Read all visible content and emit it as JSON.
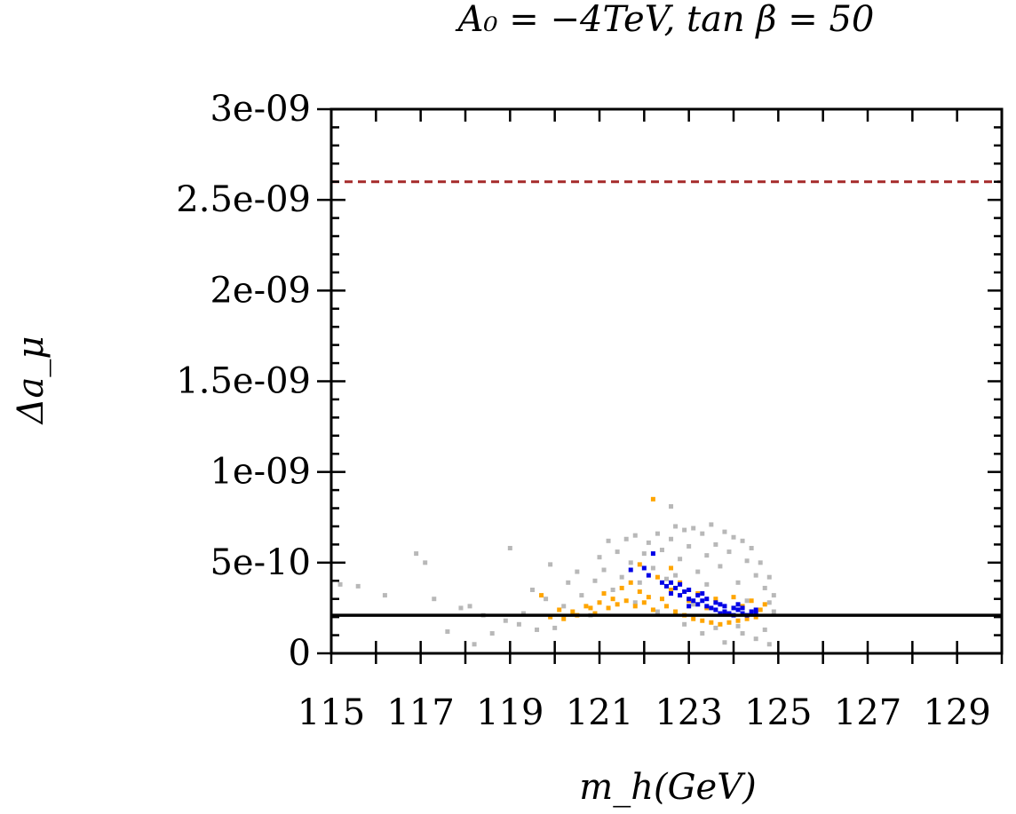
{
  "chart_data": {
    "type": "scatter",
    "title": "A₀ = −4TeV, tan β = 50",
    "xlabel": "m_h(GeV)",
    "ylabel": "Δa_μ",
    "xlim": [
      115,
      130
    ],
    "ylim": [
      0,
      3e-09
    ],
    "x_ticks": [
      115,
      117,
      119,
      121,
      123,
      125,
      127,
      129
    ],
    "x_tick_labels": [
      "115",
      "117",
      "119",
      "121",
      "123",
      "125",
      "127",
      "129"
    ],
    "y_ticks": [
      0,
      5e-10,
      1e-09,
      1.5e-09,
      2e-09,
      2.5e-09,
      3e-09
    ],
    "y_tick_labels": [
      "0",
      "5e-10",
      "1e-09",
      "1.5e-09",
      "2e-09",
      "2.5e-09",
      "3e-09"
    ],
    "grid": false,
    "reference_lines": [
      {
        "y": 2.6e-09,
        "style": "dashed",
        "color": "#a52a2a"
      },
      {
        "y": 2.1e-10,
        "style": "solid",
        "color": "#000000"
      }
    ],
    "colors": {
      "gray": "#b8b8b8",
      "orange": "#ffa500",
      "blue": "#0000e6"
    },
    "series": [
      {
        "color": "#b8b8b8",
        "points": [
          [
            115.2,
            3.8e-10
          ],
          [
            115.6,
            3.7e-10
          ],
          [
            116.2,
            3.2e-10
          ],
          [
            116.9,
            5.5e-10
          ],
          [
            117.1,
            5e-10
          ],
          [
            117.3,
            3e-10
          ],
          [
            117.6,
            1.2e-10
          ],
          [
            117.9,
            2.5e-10
          ],
          [
            118.1,
            2.6e-10
          ],
          [
            118.2,
            5e-11
          ],
          [
            118.4,
            2.1e-10
          ],
          [
            118.6,
            1.1e-10
          ],
          [
            118.9,
            1.8e-10
          ],
          [
            119.0,
            5.8e-10
          ],
          [
            119.2,
            1.6e-10
          ],
          [
            119.3,
            2.2e-10
          ],
          [
            119.5,
            3.5e-10
          ],
          [
            119.6,
            1.3e-10
          ],
          [
            119.8,
            3e-10
          ],
          [
            119.9,
            4.9e-10
          ],
          [
            120.0,
            1.4e-10
          ],
          [
            120.2,
            2.6e-10
          ],
          [
            120.3,
            3.9e-10
          ],
          [
            120.5,
            4.5e-10
          ],
          [
            120.6,
            3.2e-10
          ],
          [
            120.8,
            2.1e-10
          ],
          [
            120.9,
            4e-10
          ],
          [
            121.0,
            5.3e-10
          ],
          [
            121.1,
            4.6e-10
          ],
          [
            121.2,
            6.2e-10
          ],
          [
            121.3,
            3.5e-10
          ],
          [
            121.4,
            5.6e-10
          ],
          [
            121.5,
            4.2e-10
          ],
          [
            121.6,
            6.3e-10
          ],
          [
            121.7,
            5e-10
          ],
          [
            121.8,
            6.5e-10
          ],
          [
            121.9,
            3.9e-10
          ],
          [
            122.0,
            5.5e-10
          ],
          [
            122.1,
            6.1e-10
          ],
          [
            122.2,
            4.7e-10
          ],
          [
            122.3,
            6.6e-10
          ],
          [
            122.4,
            5.7e-10
          ],
          [
            122.5,
            4.1e-10
          ],
          [
            122.6,
            6.3e-10
          ],
          [
            122.7,
            7e-10
          ],
          [
            122.8,
            5.2e-10
          ],
          [
            122.9,
            6.8e-10
          ],
          [
            123.0,
            5.9e-10
          ],
          [
            123.1,
            6.9e-10
          ],
          [
            123.2,
            4.5e-10
          ],
          [
            123.3,
            6.6e-10
          ],
          [
            123.4,
            5.4e-10
          ],
          [
            123.5,
            7.1e-10
          ],
          [
            123.6,
            6e-10
          ],
          [
            123.7,
            4.8e-10
          ],
          [
            123.8,
            6.7e-10
          ],
          [
            123.9,
            5.6e-10
          ],
          [
            124.0,
            6.4e-10
          ],
          [
            124.1,
            3.9e-10
          ],
          [
            124.2,
            6.2e-10
          ],
          [
            124.3,
            5.1e-10
          ],
          [
            124.4,
            5.8e-10
          ],
          [
            124.5,
            4.3e-10
          ],
          [
            124.6,
            5e-10
          ],
          [
            124.7,
            3.6e-10
          ],
          [
            124.8,
            4.2e-10
          ],
          [
            124.8,
            2.8e-10
          ],
          [
            124.9,
            3.2e-10
          ],
          [
            124.9,
            2.3e-10
          ],
          [
            122.6,
            8.1e-10
          ],
          [
            123.3,
            1.1e-10
          ],
          [
            123.8,
            6e-11
          ],
          [
            124.2,
            1.1e-10
          ],
          [
            124.5,
            8e-11
          ],
          [
            124.8,
            5e-11
          ],
          [
            122.9,
            1.6e-10
          ],
          [
            123.6,
            1.4e-10
          ],
          [
            124.1,
            1.5e-10
          ],
          [
            124.7,
            1.3e-10
          ],
          [
            122.3,
            2.3e-10
          ],
          [
            121.8,
            2.8e-10
          ],
          [
            123.4,
            3.8e-10
          ],
          [
            122.7,
            4.3e-10
          ],
          [
            123.1,
            2.7e-10
          ],
          [
            124.3,
            2.9e-10
          ]
        ]
      },
      {
        "color": "#ffa500",
        "points": [
          [
            119.7,
            3.2e-10
          ],
          [
            119.9,
            2e-10
          ],
          [
            120.1,
            2.4e-10
          ],
          [
            120.2,
            1.9e-10
          ],
          [
            120.4,
            2.3e-10
          ],
          [
            120.5,
            2.1e-10
          ],
          [
            120.7,
            2.6e-10
          ],
          [
            120.8,
            2.5e-10
          ],
          [
            120.9,
            2.2e-10
          ],
          [
            121.0,
            2.8e-10
          ],
          [
            121.1,
            3.3e-10
          ],
          [
            121.2,
            2.5e-10
          ],
          [
            121.3,
            3e-10
          ],
          [
            121.4,
            2.7e-10
          ],
          [
            121.5,
            3.6e-10
          ],
          [
            121.6,
            2.9e-10
          ],
          [
            121.7,
            3.9e-10
          ],
          [
            121.8,
            2.6e-10
          ],
          [
            121.9,
            3.4e-10
          ],
          [
            122.0,
            2.8e-10
          ],
          [
            122.1,
            3.1e-10
          ],
          [
            122.2,
            2.4e-10
          ],
          [
            122.3,
            4.2e-10
          ],
          [
            122.4,
            3e-10
          ],
          [
            122.5,
            2.6e-10
          ],
          [
            122.6,
            3.5e-10
          ],
          [
            122.7,
            2.3e-10
          ],
          [
            122.8,
            3.9e-10
          ],
          [
            122.9,
            2.1e-10
          ],
          [
            123.0,
            2.9e-10
          ],
          [
            123.1,
            1.9e-10
          ],
          [
            123.2,
            3.3e-10
          ],
          [
            123.3,
            1.8e-10
          ],
          [
            123.4,
            2.5e-10
          ],
          [
            123.5,
            1.7e-10
          ],
          [
            123.6,
            3e-10
          ],
          [
            123.7,
            1.6e-10
          ],
          [
            123.8,
            2.2e-10
          ],
          [
            123.9,
            1.7e-10
          ],
          [
            124.0,
            3.1e-10
          ],
          [
            124.1,
            1.8e-10
          ],
          [
            124.2,
            2.6e-10
          ],
          [
            124.3,
            1.9e-10
          ],
          [
            124.4,
            2.9e-10
          ],
          [
            124.5,
            2e-10
          ],
          [
            124.6,
            2.4e-10
          ],
          [
            124.7,
            2.7e-10
          ],
          [
            122.2,
            8.5e-10
          ],
          [
            121.9,
            4.9e-10
          ],
          [
            122.6,
            4.7e-10
          ]
        ]
      },
      {
        "color": "#0000e6",
        "points": [
          [
            121.7,
            4.6e-10
          ],
          [
            122.0,
            4.7e-10
          ],
          [
            122.2,
            5.5e-10
          ],
          [
            122.1,
            4.3e-10
          ],
          [
            122.4,
            3.9e-10
          ],
          [
            122.5,
            3.7e-10
          ],
          [
            122.6,
            3.3e-10
          ],
          [
            122.7,
            3.6e-10
          ],
          [
            122.8,
            3.2e-10
          ],
          [
            122.8,
            3.8e-10
          ],
          [
            122.9,
            3.4e-10
          ],
          [
            123.0,
            3e-10
          ],
          [
            123.0,
            3.5e-10
          ],
          [
            123.1,
            2.9e-10
          ],
          [
            123.2,
            3.2e-10
          ],
          [
            123.2,
            2.7e-10
          ],
          [
            123.3,
            2.9e-10
          ],
          [
            123.4,
            2.6e-10
          ],
          [
            123.4,
            3e-10
          ],
          [
            123.5,
            2.5e-10
          ],
          [
            123.6,
            2.8e-10
          ],
          [
            123.6,
            2.4e-10
          ],
          [
            123.7,
            2.7e-10
          ],
          [
            123.8,
            2.3e-10
          ],
          [
            123.8,
            2.6e-10
          ],
          [
            123.9,
            2.2e-10
          ],
          [
            124.0,
            2.5e-10
          ],
          [
            124.0,
            2.1e-10
          ],
          [
            124.1,
            2.4e-10
          ],
          [
            124.2,
            2.2e-10
          ],
          [
            124.2,
            2.5e-10
          ],
          [
            124.3,
            2.1e-10
          ],
          [
            124.4,
            2.3e-10
          ],
          [
            124.5,
            2.2e-10
          ],
          [
            124.5,
            2.4e-10
          ],
          [
            122.6,
            3.9e-10
          ],
          [
            123.0,
            2.6e-10
          ],
          [
            123.3,
            3.3e-10
          ],
          [
            123.7,
            2.2e-10
          ],
          [
            124.1,
            2.7e-10
          ]
        ]
      }
    ]
  }
}
